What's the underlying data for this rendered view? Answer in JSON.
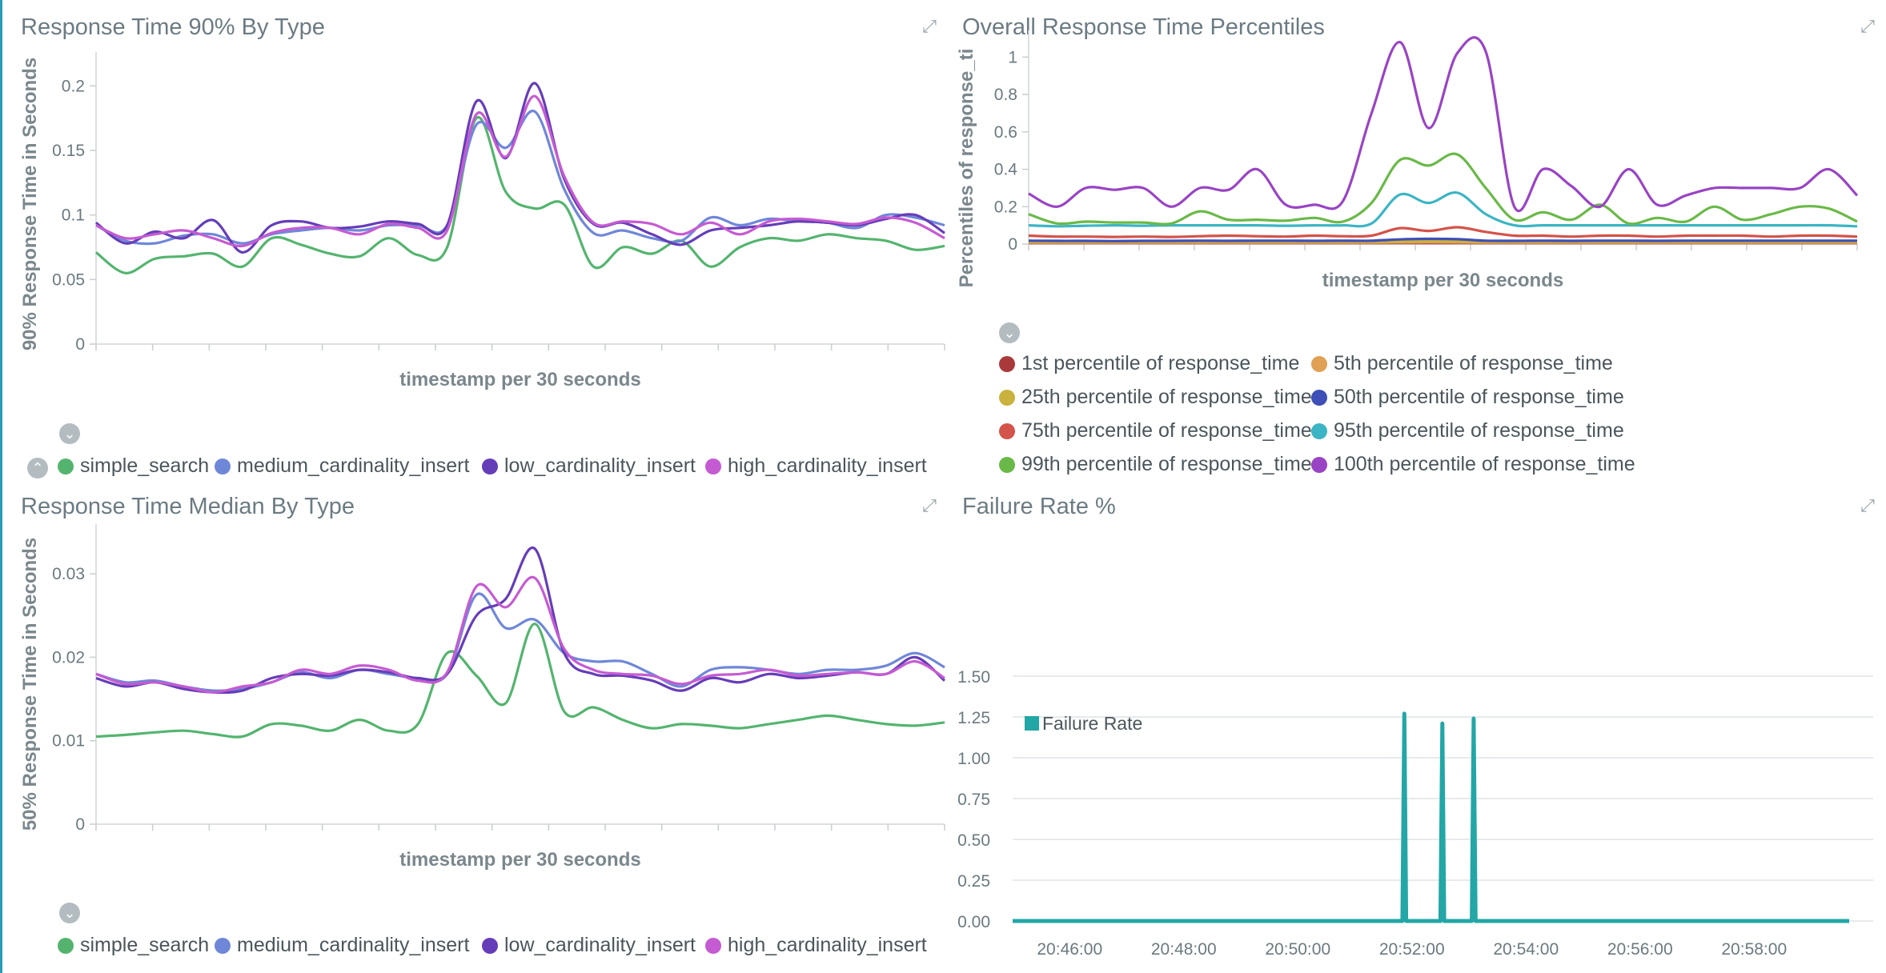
{
  "panels": {
    "p90": {
      "title": "Response Time 90% By Type"
    },
    "overall": {
      "title": "Overall Response Time Percentiles"
    },
    "median": {
      "title": "Response Time Median By Type"
    },
    "failure": {
      "title": "Failure Rate %"
    }
  },
  "colors": {
    "simple_search": "#54b46f",
    "medium_cardinality_insert": "#6f87d8",
    "low_cardinality_insert": "#663db8",
    "high_cardinality_insert": "#c55bd2",
    "p1": "#aa3a3a",
    "p5": "#e0a056",
    "p25": "#c9b23e",
    "p50": "#3e4fb8",
    "p75": "#d4534a",
    "p95": "#3bb5c4",
    "p99": "#6ab948",
    "p100": "#9944c4",
    "failure": "#23a6a6"
  },
  "chart_data": [
    {
      "id": "p90",
      "type": "line",
      "title": "Response Time 90% By Type",
      "xlabel": "timestamp per 30 seconds",
      "ylabel": "90% Response Time in Seconds",
      "ylim": [
        0,
        0.22
      ],
      "yticks": [
        "0",
        "0.05",
        "0.1",
        "0.15",
        "0.2"
      ],
      "ytick_values": [
        0,
        0.05,
        0.1,
        0.15,
        0.2
      ],
      "legend_position": "bottom",
      "series": [
        {
          "key": "simple_search",
          "name": "simple_search",
          "values": [
            0.071,
            0.055,
            0.066,
            0.068,
            0.07,
            0.06,
            0.082,
            0.077,
            0.07,
            0.068,
            0.082,
            0.069,
            0.075,
            0.175,
            0.118,
            0.105,
            0.108,
            0.06,
            0.075,
            0.07,
            0.08,
            0.06,
            0.075,
            0.082,
            0.08,
            0.085,
            0.082,
            0.08,
            0.073,
            0.076
          ]
        },
        {
          "key": "medium_cardinality_insert",
          "name": "medium_cardinality_insert",
          "values": [
            0.092,
            0.08,
            0.078,
            0.084,
            0.085,
            0.078,
            0.085,
            0.088,
            0.09,
            0.088,
            0.092,
            0.092,
            0.092,
            0.17,
            0.152,
            0.18,
            0.12,
            0.086,
            0.088,
            0.082,
            0.08,
            0.098,
            0.092,
            0.097,
            0.095,
            0.094,
            0.09,
            0.1,
            0.098,
            0.092
          ]
        },
        {
          "key": "low_cardinality_insert",
          "name": "low_cardinality_insert",
          "values": [
            0.094,
            0.078,
            0.087,
            0.082,
            0.096,
            0.071,
            0.092,
            0.095,
            0.09,
            0.091,
            0.095,
            0.093,
            0.092,
            0.188,
            0.144,
            0.202,
            0.128,
            0.093,
            0.094,
            0.085,
            0.077,
            0.088,
            0.09,
            0.092,
            0.095,
            0.094,
            0.092,
            0.097,
            0.1,
            0.086
          ]
        },
        {
          "key": "high_cardinality_insert",
          "name": "high_cardinality_insert",
          "values": [
            0.092,
            0.082,
            0.085,
            0.088,
            0.082,
            0.076,
            0.086,
            0.09,
            0.09,
            0.085,
            0.093,
            0.09,
            0.088,
            0.178,
            0.145,
            0.192,
            0.13,
            0.094,
            0.095,
            0.093,
            0.085,
            0.094,
            0.085,
            0.095,
            0.097,
            0.095,
            0.093,
            0.098,
            0.094,
            0.082
          ]
        }
      ]
    },
    {
      "id": "overall",
      "type": "line",
      "title": "Overall Response Time Percentiles",
      "xlabel": "timestamp per 30 seconds",
      "ylabel": "Percentiles of response_ti",
      "ylim": [
        0,
        1.1
      ],
      "yticks": [
        "0",
        "0.2",
        "0.4",
        "0.6",
        "0.8",
        "1"
      ],
      "ytick_values": [
        0,
        0.2,
        0.4,
        0.6,
        0.8,
        1.0
      ],
      "legend_position": "bottom",
      "series": [
        {
          "key": "p1",
          "name": "1st percentile of response_time",
          "values": [
            0.005,
            0.005,
            0.005,
            0.005,
            0.005,
            0.005,
            0.005,
            0.005,
            0.005,
            0.005,
            0.005,
            0.005,
            0.005,
            0.005,
            0.005,
            0.005,
            0.005,
            0.005,
            0.005,
            0.005,
            0.005,
            0.005,
            0.005,
            0.005,
            0.005,
            0.005,
            0.005,
            0.005,
            0.005,
            0.005
          ]
        },
        {
          "key": "p5",
          "name": "5th percentile of response_time",
          "values": [
            0.008,
            0.008,
            0.008,
            0.008,
            0.008,
            0.008,
            0.008,
            0.008,
            0.008,
            0.008,
            0.008,
            0.008,
            0.008,
            0.009,
            0.01,
            0.009,
            0.008,
            0.008,
            0.008,
            0.008,
            0.008,
            0.008,
            0.008,
            0.008,
            0.008,
            0.008,
            0.008,
            0.008,
            0.008,
            0.008
          ]
        },
        {
          "key": "p25",
          "name": "25th percentile of response_time",
          "values": [
            0.012,
            0.012,
            0.012,
            0.012,
            0.012,
            0.012,
            0.012,
            0.012,
            0.012,
            0.012,
            0.012,
            0.012,
            0.012,
            0.014,
            0.015,
            0.014,
            0.012,
            0.012,
            0.012,
            0.012,
            0.012,
            0.012,
            0.012,
            0.012,
            0.012,
            0.012,
            0.012,
            0.012,
            0.012,
            0.012
          ]
        },
        {
          "key": "p50",
          "name": "50th percentile of response_time",
          "values": [
            0.018,
            0.017,
            0.017,
            0.016,
            0.017,
            0.017,
            0.018,
            0.017,
            0.018,
            0.018,
            0.017,
            0.018,
            0.018,
            0.025,
            0.028,
            0.026,
            0.018,
            0.017,
            0.018,
            0.017,
            0.018,
            0.018,
            0.017,
            0.018,
            0.018,
            0.018,
            0.018,
            0.018,
            0.018,
            0.018
          ]
        },
        {
          "key": "p75",
          "name": "75th percentile of response_time",
          "values": [
            0.045,
            0.04,
            0.04,
            0.038,
            0.04,
            0.038,
            0.042,
            0.045,
            0.042,
            0.04,
            0.045,
            0.042,
            0.045,
            0.085,
            0.07,
            0.09,
            0.065,
            0.045,
            0.045,
            0.04,
            0.045,
            0.045,
            0.04,
            0.045,
            0.045,
            0.045,
            0.04,
            0.045,
            0.045,
            0.04
          ]
        },
        {
          "key": "p95",
          "name": "95th percentile of response_time",
          "values": [
            0.1,
            0.095,
            0.098,
            0.1,
            0.098,
            0.1,
            0.1,
            0.1,
            0.1,
            0.098,
            0.1,
            0.1,
            0.11,
            0.265,
            0.22,
            0.275,
            0.16,
            0.1,
            0.1,
            0.1,
            0.1,
            0.1,
            0.1,
            0.1,
            0.1,
            0.1,
            0.1,
            0.1,
            0.1,
            0.095
          ]
        },
        {
          "key": "p99",
          "name": "99th percentile of response_time",
          "values": [
            0.16,
            0.11,
            0.12,
            0.115,
            0.115,
            0.11,
            0.175,
            0.13,
            0.13,
            0.125,
            0.14,
            0.12,
            0.22,
            0.45,
            0.42,
            0.48,
            0.3,
            0.13,
            0.17,
            0.13,
            0.21,
            0.11,
            0.14,
            0.12,
            0.2,
            0.13,
            0.16,
            0.2,
            0.19,
            0.12
          ]
        },
        {
          "key": "p100",
          "name": "100th percentile of response_time",
          "values": [
            0.27,
            0.2,
            0.3,
            0.29,
            0.3,
            0.2,
            0.3,
            0.29,
            0.4,
            0.21,
            0.21,
            0.23,
            0.7,
            1.08,
            0.62,
            1.02,
            1.03,
            0.2,
            0.4,
            0.31,
            0.2,
            0.4,
            0.21,
            0.26,
            0.3,
            0.3,
            0.3,
            0.3,
            0.4,
            0.26
          ]
        }
      ]
    },
    {
      "id": "median",
      "type": "line",
      "title": "Response Time Median By Type",
      "xlabel": "timestamp per 30 seconds",
      "ylabel": "50% Response Time in Seconds",
      "ylim": [
        0,
        0.035
      ],
      "yticks": [
        "0",
        "0.01",
        "0.02",
        "0.03"
      ],
      "ytick_values": [
        0,
        0.01,
        0.02,
        0.03
      ],
      "legend_position": "bottom",
      "series": [
        {
          "key": "simple_search",
          "name": "simple_search",
          "values": [
            0.0105,
            0.0107,
            0.011,
            0.0112,
            0.0108,
            0.0105,
            0.012,
            0.0118,
            0.0112,
            0.0125,
            0.0112,
            0.012,
            0.0205,
            0.0178,
            0.0145,
            0.024,
            0.0135,
            0.014,
            0.0125,
            0.0115,
            0.012,
            0.0118,
            0.0115,
            0.012,
            0.0125,
            0.013,
            0.0125,
            0.012,
            0.0118,
            0.0122
          ]
        },
        {
          "key": "medium_cardinality_insert",
          "name": "medium_cardinality_insert",
          "values": [
            0.018,
            0.017,
            0.0172,
            0.0165,
            0.016,
            0.0162,
            0.017,
            0.0182,
            0.0175,
            0.0185,
            0.018,
            0.0175,
            0.018,
            0.0275,
            0.0235,
            0.0245,
            0.0205,
            0.0195,
            0.0195,
            0.018,
            0.0165,
            0.0185,
            0.0188,
            0.0185,
            0.018,
            0.0185,
            0.0185,
            0.019,
            0.0205,
            0.0188
          ]
        },
        {
          "key": "low_cardinality_insert",
          "name": "low_cardinality_insert",
          "values": [
            0.0175,
            0.0165,
            0.017,
            0.0162,
            0.0158,
            0.016,
            0.0175,
            0.018,
            0.0178,
            0.0185,
            0.0182,
            0.0175,
            0.018,
            0.025,
            0.027,
            0.033,
            0.0205,
            0.018,
            0.0178,
            0.0172,
            0.016,
            0.0175,
            0.017,
            0.018,
            0.0175,
            0.0178,
            0.0182,
            0.018,
            0.02,
            0.0172
          ]
        },
        {
          "key": "high_cardinality_insert",
          "name": "high_cardinality_insert",
          "values": [
            0.018,
            0.0168,
            0.017,
            0.0165,
            0.0158,
            0.0165,
            0.017,
            0.0185,
            0.018,
            0.019,
            0.0185,
            0.0172,
            0.0182,
            0.0285,
            0.026,
            0.0295,
            0.021,
            0.0185,
            0.018,
            0.0178,
            0.0168,
            0.0178,
            0.018,
            0.0185,
            0.0178,
            0.018,
            0.0182,
            0.018,
            0.0195,
            0.0175
          ]
        }
      ]
    },
    {
      "id": "failure",
      "type": "line",
      "title": "Failure Rate %",
      "xlabel": "",
      "ylabel": "",
      "ylim": [
        0,
        1.5
      ],
      "yticks": [
        "0.00",
        "0.25",
        "0.50",
        "0.75",
        "1.00",
        "1.25",
        "1.50"
      ],
      "ytick_values": [
        0,
        0.25,
        0.5,
        0.75,
        1.0,
        1.25,
        1.5
      ],
      "xlim": [
        "20:45:00",
        "20:59:40"
      ],
      "xticks": [
        "20:46:00",
        "20:48:00",
        "20:50:00",
        "20:52:00",
        "20:54:00",
        "20:56:00",
        "20:58:00"
      ],
      "legend_position": "top-left",
      "series": [
        {
          "key": "failure",
          "name": "Failure Rate",
          "points": [
            [
              "20:45:00",
              0
            ],
            [
              "20:51:50",
              0
            ],
            [
              "20:51:52",
              1.27
            ],
            [
              "20:51:54",
              0
            ],
            [
              "20:52:30",
              0
            ],
            [
              "20:52:32",
              1.21
            ],
            [
              "20:52:34",
              0
            ],
            [
              "20:53:03",
              0
            ],
            [
              "20:53:05",
              1.24
            ],
            [
              "20:53:07",
              0
            ],
            [
              "20:59:40",
              0
            ]
          ]
        }
      ]
    }
  ],
  "legends": {
    "p90": [
      "simple_search",
      "medium_cardinality_insert",
      "low_cardinality_insert",
      "high_cardinality_insert"
    ],
    "overall": [
      "1st percentile of response_time",
      "5th percentile of response_time",
      "25th percentile of response_time",
      "50th percentile of response_time",
      "75th percentile of response_time",
      "95th percentile of response_time",
      "99th percentile of response_time",
      "100th percentile of response_time"
    ],
    "median": [
      "simple_search",
      "medium_cardinality_insert",
      "low_cardinality_insert",
      "high_cardinality_insert"
    ],
    "failure": [
      "Failure Rate"
    ]
  },
  "icons": {
    "expand": "expand-icon",
    "collapse": "chevron-down-icon",
    "legend_up": "chevron-up-icon"
  }
}
